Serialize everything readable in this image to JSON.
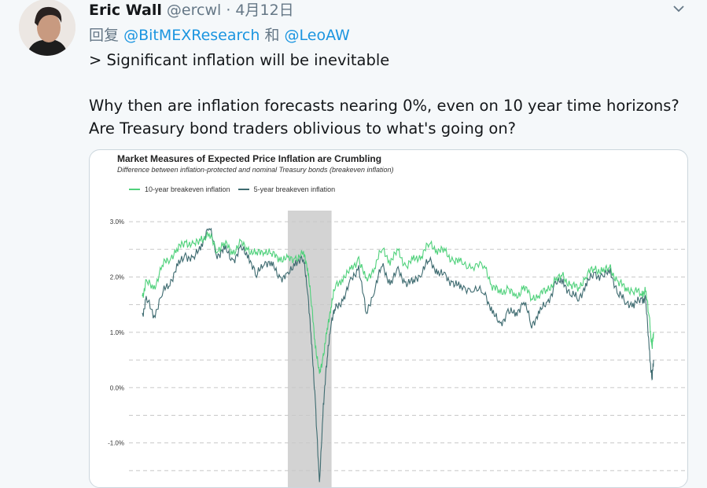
{
  "tweet": {
    "name": "Eric Wall",
    "handle": "@ercwl",
    "separator": "·",
    "date": "4月12日",
    "reply_prefix": "回复",
    "reply_user1": "@BitMEXResearch",
    "reply_and": "和",
    "reply_user2": "@LeoAW",
    "line1": "> Significant inflation will be inevitable",
    "line2": "Why then are inflation forecasts nearing 0%, even on 10 year time horizons? Are Treasury bond traders oblivious to what's going on?",
    "menu_icon": "chevron-down-icon"
  },
  "colors": {
    "ten_year": "#4fd17b",
    "five_year": "#3e6b70",
    "recession": "#d3d3d3",
    "link": "#1b95e0"
  },
  "chart_data": {
    "type": "line",
    "title": "Market Measures of Expected Price Inflation are Crumbling",
    "subtitle": "Difference between inflation-protected and nominal Treasury bonds (breakeven inflation)",
    "xlabel": "",
    "ylabel": "",
    "legend_position": "top-left",
    "grid": true,
    "xlim": [
      2003.0,
      2020.29
    ],
    "ylim": [
      -1.8,
      3.2
    ],
    "yticks": [
      3.0,
      2.0,
      1.0,
      0.0,
      -1.0
    ],
    "ytick_labels": [
      "3.0%",
      "2.0%",
      "1.0%",
      "0.0%",
      "-1.0%"
    ],
    "recession_shading": [
      2007.92,
      2009.4
    ],
    "x": [
      2003.0,
      2003.13,
      2003.4,
      2003.67,
      2003.93,
      2004.2,
      2004.46,
      2004.73,
      2005.0,
      2005.26,
      2005.53,
      2005.79,
      2006.06,
      2006.33,
      2006.59,
      2006.86,
      2007.12,
      2007.39,
      2007.66,
      2007.92,
      2008.19,
      2008.45,
      2008.59,
      2008.72,
      2008.85,
      2008.99,
      2009.12,
      2009.25,
      2009.38,
      2009.52,
      2009.78,
      2010.05,
      2010.32,
      2010.58,
      2010.85,
      2011.11,
      2011.38,
      2011.65,
      2011.91,
      2012.18,
      2012.44,
      2012.71,
      2012.98,
      2013.24,
      2013.51,
      2013.77,
      2014.17,
      2014.57,
      2014.84,
      2015.1,
      2015.37,
      2015.64,
      2015.9,
      2016.17,
      2016.43,
      2016.7,
      2016.97,
      2017.23,
      2017.5,
      2017.76,
      2018.03,
      2018.3,
      2018.56,
      2018.83,
      2019.09,
      2019.36,
      2019.63,
      2019.89,
      2020.02,
      2020.16,
      2020.24,
      2020.29
    ],
    "series": [
      {
        "name": "10-year breakeven inflation",
        "values": [
          1.65,
          1.9,
          1.8,
          2.2,
          2.35,
          2.5,
          2.65,
          2.55,
          2.7,
          2.75,
          2.5,
          2.6,
          2.45,
          2.6,
          2.5,
          2.4,
          2.5,
          2.4,
          2.35,
          2.3,
          2.35,
          2.4,
          2.2,
          1.5,
          0.8,
          0.2,
          0.6,
          1.0,
          1.5,
          1.8,
          2.0,
          2.1,
          2.35,
          1.9,
          2.2,
          2.5,
          2.3,
          2.45,
          2.2,
          2.3,
          2.4,
          2.6,
          2.5,
          2.45,
          2.3,
          2.25,
          2.2,
          2.2,
          1.85,
          1.7,
          1.8,
          1.6,
          1.85,
          1.6,
          1.7,
          1.75,
          1.95,
          2.0,
          1.85,
          1.8,
          2.05,
          2.15,
          2.1,
          2.15,
          1.9,
          1.8,
          1.75,
          1.7,
          1.75,
          1.2,
          0.7,
          1.0
        ]
      },
      {
        "name": "5-year breakeven inflation",
        "values": [
          1.3,
          1.6,
          1.3,
          1.7,
          1.9,
          2.2,
          2.4,
          2.3,
          2.6,
          2.9,
          2.4,
          2.5,
          2.3,
          2.5,
          2.4,
          2.0,
          2.3,
          2.2,
          2.0,
          2.0,
          2.3,
          2.3,
          1.8,
          0.8,
          -0.2,
          -1.8,
          -0.3,
          0.5,
          1.2,
          1.4,
          1.6,
          1.9,
          2.2,
          1.3,
          1.8,
          2.2,
          1.9,
          2.1,
          1.9,
          1.9,
          2.1,
          2.3,
          2.1,
          2.0,
          1.9,
          1.8,
          1.8,
          1.7,
          1.4,
          1.1,
          1.4,
          1.3,
          1.6,
          1.1,
          1.4,
          1.5,
          1.9,
          1.9,
          1.7,
          1.6,
          1.9,
          2.05,
          2.0,
          2.1,
          1.7,
          1.55,
          1.5,
          1.6,
          1.6,
          0.6,
          0.15,
          0.5
        ]
      }
    ]
  }
}
